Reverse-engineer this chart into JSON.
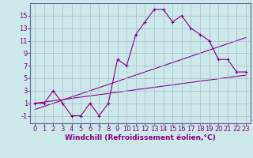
{
  "background_color": "#cce8e8",
  "line_color": "#880088",
  "grid_color": "#aabbcc",
  "xlabel": "Windchill (Refroidissement éolien,°C)",
  "x_ticks": [
    0,
    1,
    2,
    3,
    4,
    5,
    6,
    7,
    8,
    9,
    10,
    11,
    12,
    13,
    14,
    15,
    16,
    17,
    18,
    19,
    20,
    21,
    22,
    23
  ],
  "y_ticks": [
    -1,
    1,
    3,
    5,
    7,
    9,
    11,
    13,
    15
  ],
  "xlim": [
    -0.5,
    23.5
  ],
  "ylim": [
    -2.2,
    17.0
  ],
  "line1_x": [
    0,
    1,
    2,
    3,
    4,
    5,
    6,
    7,
    8,
    9,
    10,
    11,
    12,
    13,
    14,
    15,
    16,
    17,
    18,
    19,
    20,
    21,
    22,
    23
  ],
  "line1_y": [
    1,
    1,
    3,
    1,
    -1,
    -1,
    1,
    -1,
    1,
    8,
    7,
    12,
    14,
    16,
    16,
    14,
    15,
    13,
    12,
    11,
    8,
    8,
    6,
    6
  ],
  "line2_x": [
    0,
    23
  ],
  "line2_y": [
    1,
    5.5
  ],
  "line3_x": [
    0,
    23
  ],
  "line3_y": [
    0,
    11.5
  ],
  "tick_fontsize": 6,
  "label_fontsize": 6.5
}
